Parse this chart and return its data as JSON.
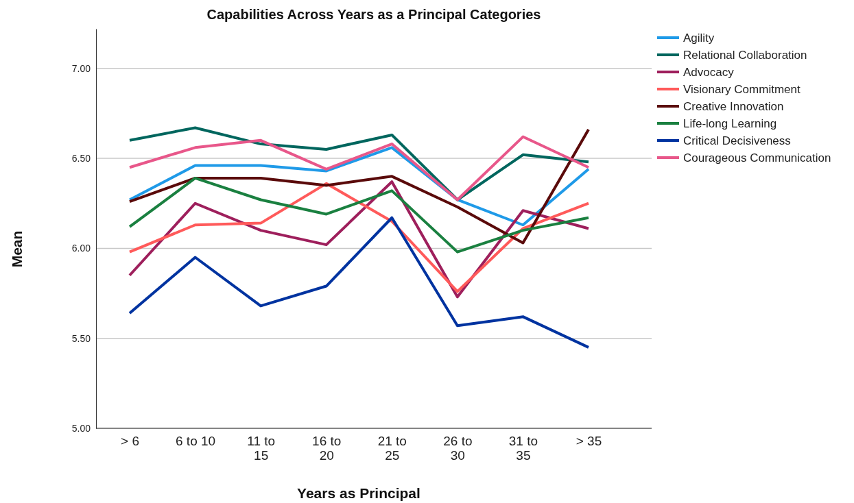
{
  "chart_data": {
    "type": "line",
    "title": "Capabilities Across Years as a Principal Categories",
    "xlabel": "Years as Principal",
    "ylabel": "Mean",
    "categories": [
      "> 6",
      "6 to 10",
      "11 to 15",
      "16 to 20",
      "21 to 25",
      "26 to 30",
      "31 to 35",
      "> 35"
    ],
    "ylim": [
      5,
      7.22
    ],
    "yticks": [
      {
        "value": 5,
        "label": "5.00"
      },
      {
        "value": 5.5,
        "label": "5.50"
      },
      {
        "value": 6,
        "label": "6.00"
      },
      {
        "value": 6.5,
        "label": "6.50"
      },
      {
        "value": 7,
        "label": "7.00"
      }
    ],
    "grid": "y",
    "legend": "top right",
    "marker": "none",
    "line_style": "solid",
    "series": [
      {
        "name": "Agility",
        "color": "#1f9ae8",
        "values": [
          6.27,
          6.46,
          6.46,
          6.43,
          6.56,
          6.27,
          6.13,
          6.44
        ]
      },
      {
        "name": "Relational Collaboration",
        "color": "#00665e",
        "values": [
          6.6,
          6.67,
          6.58,
          6.55,
          6.63,
          6.27,
          6.52,
          6.48
        ]
      },
      {
        "name": "Advocacy",
        "color": "#9e1f5c",
        "values": [
          5.85,
          6.25,
          6.1,
          6.02,
          6.37,
          5.73,
          6.21,
          6.11
        ]
      },
      {
        "name": "Visionary Commitment",
        "color": "#ff5a5a",
        "values": [
          5.98,
          6.13,
          6.14,
          6.36,
          6.15,
          5.76,
          6.11,
          6.25
        ]
      },
      {
        "name": "Creative Innovation",
        "color": "#5a0a0a",
        "values": [
          6.26,
          6.39,
          6.39,
          6.35,
          6.4,
          6.23,
          6.03,
          6.66
        ]
      },
      {
        "name": "Life-long Learning",
        "color": "#1a8040",
        "values": [
          6.12,
          6.39,
          6.27,
          6.19,
          6.32,
          5.98,
          6.1,
          6.17
        ]
      },
      {
        "name": "Critical Decisiveness",
        "color": "#0033a0",
        "values": [
          5.64,
          5.95,
          5.68,
          5.79,
          6.17,
          5.57,
          5.62,
          5.45
        ]
      },
      {
        "name": "Courageous Communication",
        "color": "#e8578a",
        "values": [
          6.45,
          6.56,
          6.6,
          6.44,
          6.58,
          6.27,
          6.62,
          6.45
        ]
      }
    ]
  }
}
